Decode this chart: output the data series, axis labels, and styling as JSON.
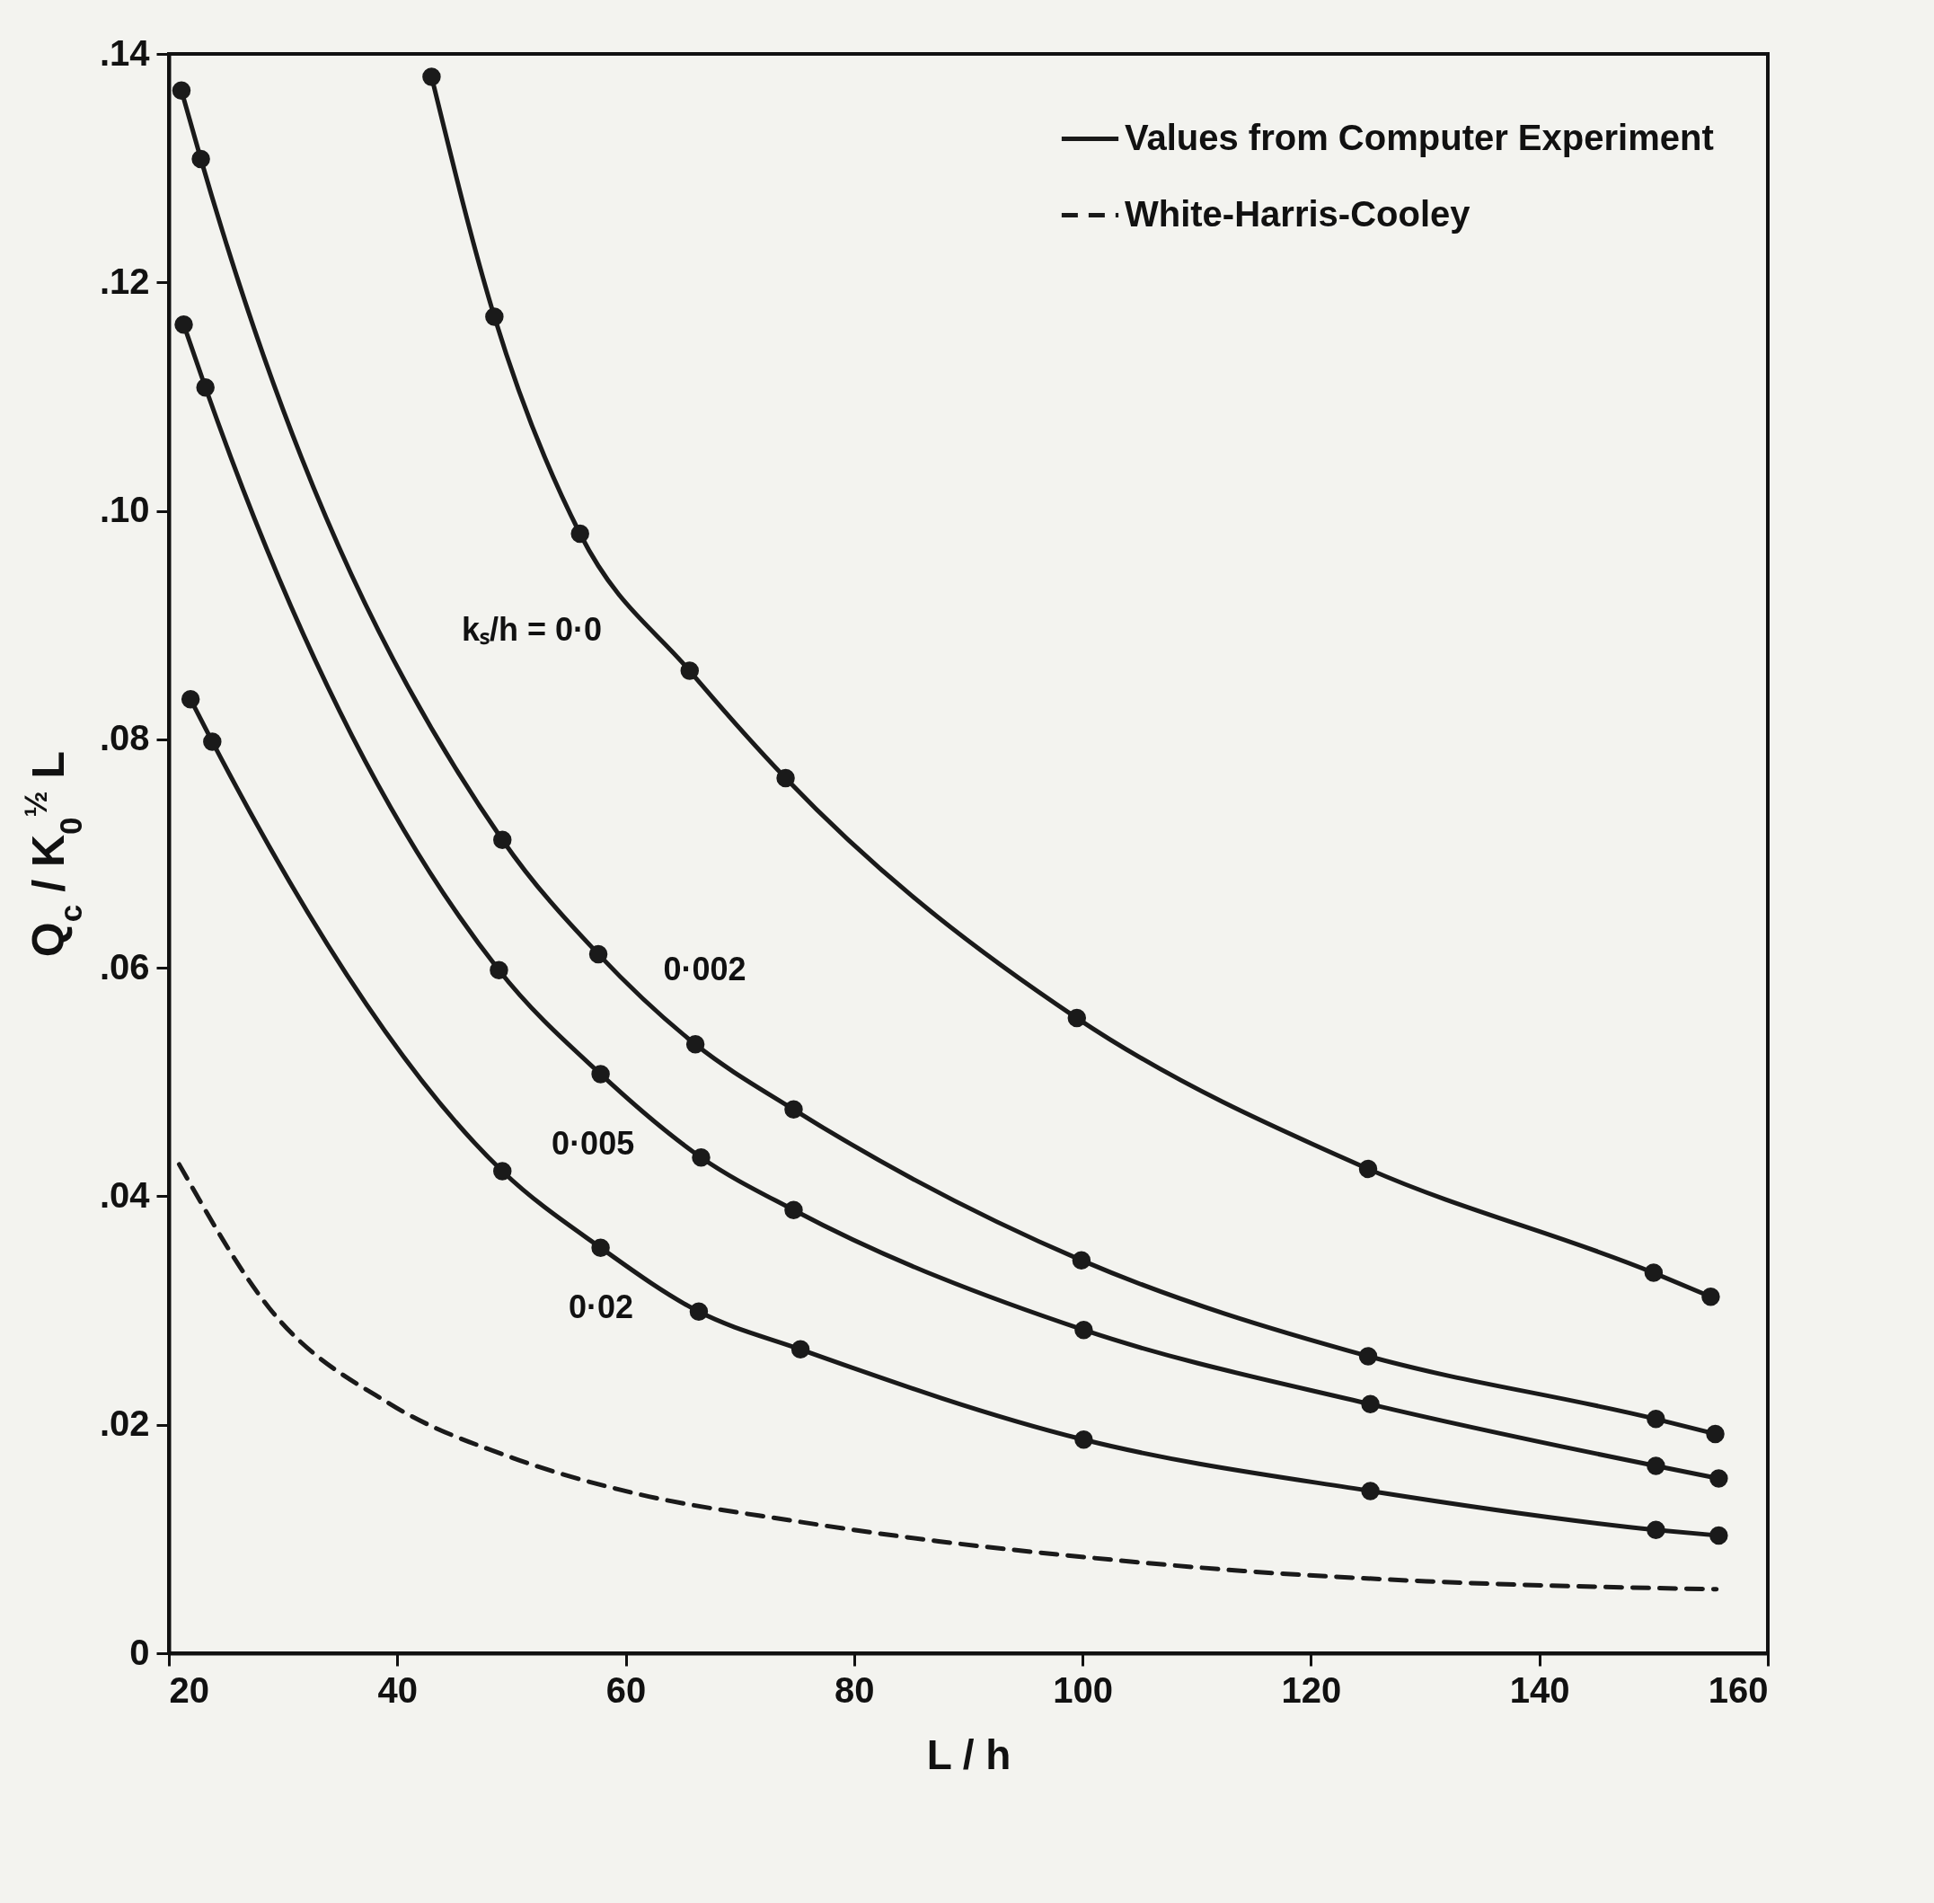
{
  "chart_data": {
    "type": "line",
    "xlabel": "L / h",
    "ylabel": "Q$_{c}$ / K$_{0}$$^{½}$ L",
    "xlim": [
      20,
      160
    ],
    "xticks": [
      20,
      40,
      60,
      80,
      100,
      120,
      140,
      160
    ],
    "ylim": [
      0,
      0.14
    ],
    "yticks": [
      {
        "value": 0,
        "label": "0"
      },
      {
        "value": 0.02,
        "label": ".02"
      },
      {
        "value": 0.04,
        "label": ".04"
      },
      {
        "value": 0.06,
        "label": ".06"
      },
      {
        "value": 0.08,
        "label": ".08"
      },
      {
        "value": 0.1,
        "label": ".10"
      },
      {
        "value": 0.12,
        "label": ".12"
      },
      {
        "value": 0.14,
        "label": ".14"
      }
    ],
    "marker": "circle",
    "line_style": "solid",
    "legend": "top right",
    "series": [
      {
        "name": "kₛ/h = 0·0",
        "color": "#1a1a1a",
        "x": [
          43,
          48.5,
          56,
          65.6,
          74,
          99.5,
          125,
          150,
          155
        ],
        "values": [
          0.138,
          0.117,
          0.098,
          0.086,
          0.0766,
          0.0556,
          0.0424,
          0.0333,
          0.0312
        ]
      },
      {
        "name": "0·002",
        "color": "#1a1a1a",
        "x": [
          21.1,
          22.8,
          49.2,
          57.6,
          66.1,
          74.7,
          99.9,
          125,
          150.2,
          155.4
        ],
        "values": [
          0.1368,
          0.1308,
          0.0712,
          0.0612,
          0.0533,
          0.0476,
          0.0344,
          0.026,
          0.0205,
          0.0192
        ]
      },
      {
        "name": "0·005",
        "color": "#1a1a1a",
        "x": [
          21.3,
          23.2,
          48.9,
          57.8,
          66.6,
          74.7,
          100.1,
          125.2,
          150.2,
          155.7
        ],
        "values": [
          0.1163,
          0.1108,
          0.0598,
          0.0507,
          0.0434,
          0.0388,
          0.0283,
          0.0218,
          0.0164,
          0.0153
        ]
      },
      {
        "name": "0·02",
        "color": "#1a1a1a",
        "x": [
          21.9,
          23.8,
          49.2,
          57.8,
          66.4,
          75.3,
          100.1,
          125.2,
          150.2,
          155.7
        ],
        "values": [
          0.0835,
          0.0798,
          0.0422,
          0.0355,
          0.0299,
          0.0266,
          0.0187,
          0.0142,
          0.0108,
          0.0103
        ]
      },
      {
        "name": "White-Harris-Cooley",
        "color": "#1a1a1a",
        "marker": "none",
        "line_style": "dashed",
        "x": [
          20.9,
          28.8,
          39.4,
          50.1,
          60.8,
          74.6,
          87.4,
          100.3,
          114.1,
          130.1,
          155.5
        ],
        "values": [
          0.0428,
          0.0302,
          0.0218,
          0.0171,
          0.014,
          0.0116,
          0.0098,
          0.0084,
          0.0072,
          0.0063,
          0.0056
        ]
      }
    ],
    "annotations": [
      "Values from Computer Experiment"
    ]
  }
}
